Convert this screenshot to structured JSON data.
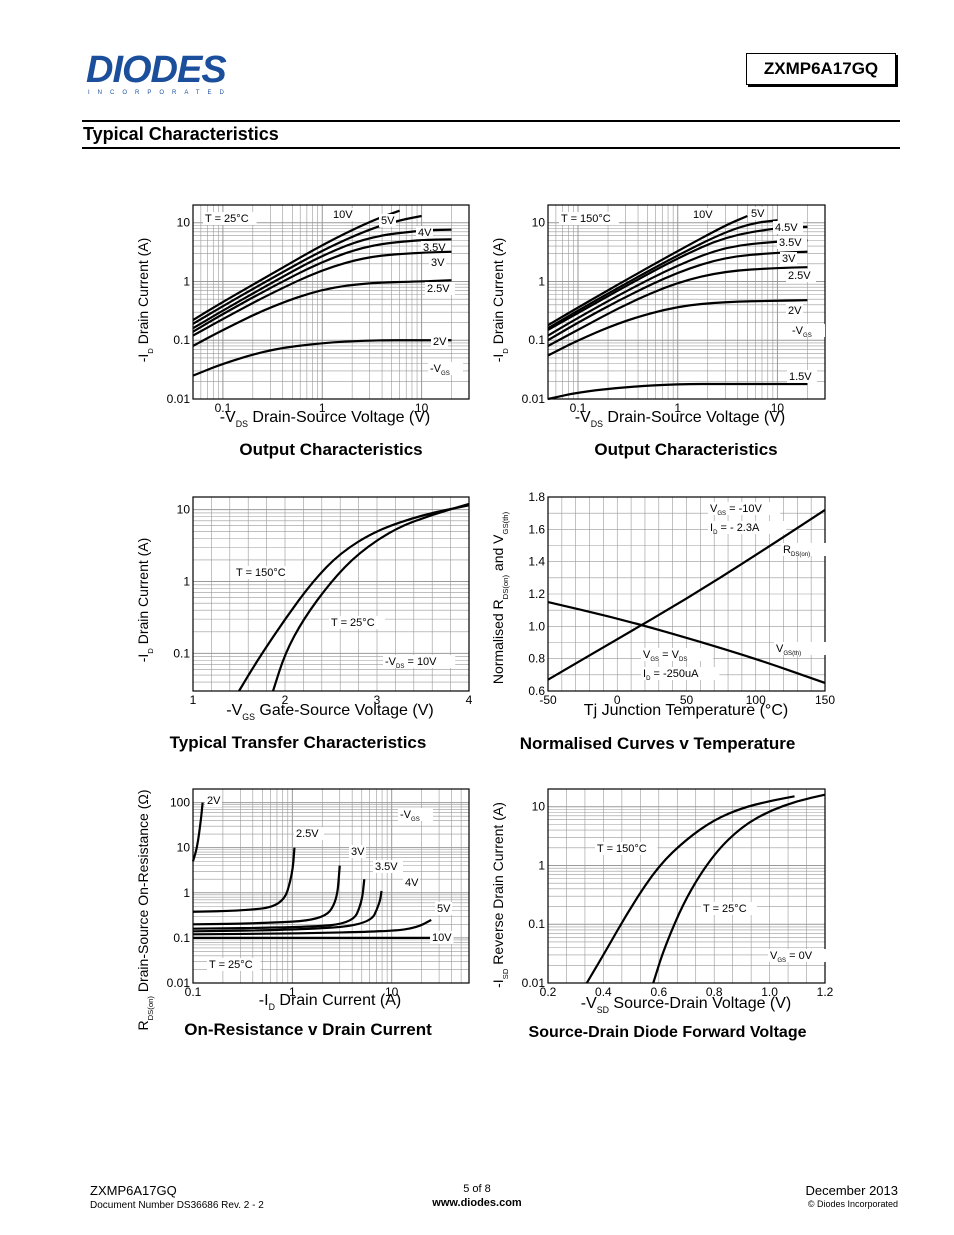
{
  "header": {
    "logo_text": "DIODES",
    "logo_subtext": "INCORPORATED",
    "part_number": "ZXMP6A17GQ",
    "section_title": "Typical Characteristics"
  },
  "footer": {
    "part_number": "ZXMP6A17GQ",
    "document_number": "Document Number DS36686 Rev. 2 - 2",
    "page": "5 of 8",
    "website": "www.diodes.com",
    "date": "December 2013",
    "copyright": "© Diodes Incorporated"
  },
  "chart_data": [
    {
      "type": "line",
      "caption": "Output Characteristics",
      "xlabel": "-V_DS Drain-Source Voltage (V)",
      "ylabel": "-I_D Drain Current (A)",
      "xscale": "log",
      "yscale": "log",
      "xlim": [
        0.05,
        30
      ],
      "ylim": [
        0.01,
        20
      ],
      "xticks": [
        0.1,
        1,
        10
      ],
      "yticks": [
        0.01,
        0.1,
        1,
        10
      ],
      "xtick_labels": [
        "0.1",
        "1",
        "10"
      ],
      "ytick_labels": [
        "0.01",
        "0.1",
        "1",
        "10"
      ],
      "annotations": [
        "T = 25°C",
        "-V_GS"
      ],
      "series": [
        {
          "name": "10V",
          "x": [
            0.05,
            0.1,
            0.3,
            1,
            3,
            6
          ],
          "y": [
            0.22,
            0.45,
            1.3,
            4.2,
            10.5,
            16
          ]
        },
        {
          "name": "5V",
          "x": [
            0.05,
            0.1,
            0.3,
            1,
            3,
            6,
            10
          ],
          "y": [
            0.19,
            0.38,
            1.1,
            3.4,
            7.8,
            11,
            13
          ]
        },
        {
          "name": "4V",
          "x": [
            0.05,
            0.1,
            0.3,
            1,
            3,
            10,
            20
          ],
          "y": [
            0.16,
            0.32,
            0.92,
            2.8,
            5.8,
            7.4,
            7.6
          ]
        },
        {
          "name": "3.5V",
          "x": [
            0.05,
            0.1,
            0.3,
            1,
            3,
            10,
            20
          ],
          "y": [
            0.14,
            0.28,
            0.78,
            2.2,
            4.2,
            5.1,
            5.2
          ]
        },
        {
          "name": "3V",
          "x": [
            0.05,
            0.1,
            0.3,
            1,
            3,
            10,
            20
          ],
          "y": [
            0.12,
            0.23,
            0.62,
            1.6,
            2.7,
            3.1,
            3.2
          ]
        },
        {
          "name": "2.5V",
          "x": [
            0.05,
            0.1,
            0.3,
            1,
            3,
            10,
            20
          ],
          "y": [
            0.08,
            0.15,
            0.37,
            0.75,
            0.95,
            1.0,
            1.05
          ]
        },
        {
          "name": "2V",
          "x": [
            0.05,
            0.1,
            0.3,
            1,
            3,
            10,
            20
          ],
          "y": [
            0.025,
            0.04,
            0.07,
            0.09,
            0.1,
            0.1,
            0.1
          ]
        }
      ]
    },
    {
      "type": "line",
      "caption": "Output Characteristics",
      "xlabel": "-V_DS Drain-Source Voltage (V)",
      "ylabel": "-I_D Drain Current (A)",
      "xscale": "log",
      "yscale": "log",
      "xlim": [
        0.05,
        30
      ],
      "ylim": [
        0.01,
        20
      ],
      "xticks": [
        0.1,
        1,
        10
      ],
      "yticks": [
        0.01,
        0.1,
        1,
        10
      ],
      "xtick_labels": [
        "0.1",
        "1",
        "10"
      ],
      "ytick_labels": [
        "0.01",
        "0.1",
        "1",
        "10"
      ],
      "annotations": [
        "T = 150°C",
        "-V_GS"
      ],
      "series": [
        {
          "name": "10V",
          "x": [
            0.05,
            0.1,
            0.3,
            1,
            3,
            5
          ],
          "y": [
            0.18,
            0.36,
            1.05,
            3.3,
            9,
            13
          ]
        },
        {
          "name": "5V",
          "x": [
            0.05,
            0.1,
            0.3,
            1,
            3,
            6,
            10
          ],
          "y": [
            0.16,
            0.32,
            0.92,
            2.8,
            7,
            10,
            11
          ]
        },
        {
          "name": "4.5V",
          "x": [
            0.05,
            0.1,
            0.3,
            1,
            3,
            10,
            20
          ],
          "y": [
            0.15,
            0.29,
            0.83,
            2.5,
            5.8,
            8.2,
            8.5
          ]
        },
        {
          "name": "3.5V",
          "x": [
            0.05,
            0.1,
            0.3,
            1,
            3,
            10,
            20
          ],
          "y": [
            0.12,
            0.24,
            0.68,
            1.9,
            3.9,
            4.8,
            5.0
          ]
        },
        {
          "name": "3V",
          "x": [
            0.05,
            0.1,
            0.3,
            1,
            3,
            10,
            20
          ],
          "y": [
            0.1,
            0.2,
            0.55,
            1.45,
            2.6,
            3.1,
            3.2
          ]
        },
        {
          "name": "2.5V",
          "x": [
            0.05,
            0.1,
            0.3,
            1,
            3,
            10,
            20
          ],
          "y": [
            0.08,
            0.15,
            0.41,
            0.98,
            1.5,
            1.7,
            1.75
          ]
        },
        {
          "name": "2V",
          "x": [
            0.05,
            0.1,
            0.3,
            1,
            3,
            10,
            20
          ],
          "y": [
            0.055,
            0.1,
            0.22,
            0.38,
            0.45,
            0.47,
            0.48
          ]
        },
        {
          "name": "1.5V",
          "x": [
            0.05,
            0.1,
            0.3,
            1,
            3,
            10,
            20
          ],
          "y": [
            0.01,
            0.013,
            0.016,
            0.018,
            0.018,
            0.018,
            0.018
          ]
        }
      ]
    },
    {
      "type": "line",
      "caption": "Typical Transfer Characteristics",
      "xlabel": "-V_GS Gate-Source Voltage (V)",
      "ylabel": "-I_D Drain Current (A)",
      "xscale": "linear",
      "yscale": "log",
      "xlim": [
        1,
        4
      ],
      "ylim": [
        0.03,
        15
      ],
      "xticks": [
        1,
        2,
        3,
        4
      ],
      "yticks": [
        0.1,
        1,
        10
      ],
      "xtick_labels": [
        "1",
        "2",
        "3",
        "4"
      ],
      "ytick_labels": [
        "0.1",
        "1",
        "10"
      ],
      "annotations": [
        "-V_DS = 10V"
      ],
      "series": [
        {
          "name": "T = 150°C",
          "x": [
            1.5,
            1.7,
            2.0,
            2.3,
            2.6,
            3.0,
            3.5,
            4.0
          ],
          "y": [
            0.03,
            0.08,
            0.3,
            1.0,
            2.5,
            5.2,
            8.5,
            11.5
          ]
        },
        {
          "name": "T = 25°C",
          "x": [
            1.87,
            2.0,
            2.2,
            2.5,
            2.8,
            3.2,
            3.6,
            4.0
          ],
          "y": [
            0.03,
            0.1,
            0.3,
            1.0,
            2.5,
            5.5,
            8.5,
            12
          ]
        }
      ]
    },
    {
      "type": "line",
      "caption": "Normalised Curves v Temperature",
      "xlabel": "Tj Junction Temperature (°C)",
      "ylabel": "Normalised R_DS(on) and V_GS(th)",
      "xscale": "linear",
      "yscale": "linear",
      "xlim": [
        -50,
        150
      ],
      "ylim": [
        0.6,
        1.8
      ],
      "xticks": [
        -50,
        0,
        50,
        100,
        150
      ],
      "yticks": [
        0.6,
        0.8,
        1.0,
        1.2,
        1.4,
        1.6,
        1.8
      ],
      "xtick_labels": [
        "-50",
        "0",
        "50",
        "100",
        "150"
      ],
      "ytick_labels": [
        "0.6",
        "0.8",
        "1.0",
        "1.2",
        "1.4",
        "1.6",
        "1.8"
      ],
      "annotations": [
        "V_GS = -10V",
        "I_D = - 2.3A",
        "V_GS = V_DS",
        "I_D = -250uA"
      ],
      "series": [
        {
          "name": "R_DS(on)",
          "x": [
            -50,
            0,
            50,
            100,
            150
          ],
          "y": [
            0.67,
            0.92,
            1.17,
            1.44,
            1.72
          ]
        },
        {
          "name": "V_GS(th)",
          "x": [
            -50,
            0,
            50,
            100,
            150
          ],
          "y": [
            1.15,
            1.05,
            0.93,
            0.8,
            0.65
          ]
        }
      ]
    },
    {
      "type": "line",
      "caption": "On-Resistance v Drain Current",
      "xlabel": "-I_D Drain Current (A)",
      "ylabel": "R_DS(on) Drain-Source On-Resistance (Ω)",
      "xscale": "log",
      "yscale": "log",
      "xlim": [
        0.1,
        60
      ],
      "ylim": [
        0.01,
        200
      ],
      "xticks": [
        0.1,
        1,
        10
      ],
      "yticks": [
        0.01,
        0.1,
        1,
        10,
        100
      ],
      "xtick_labels": [
        "0.1",
        "1",
        "10"
      ],
      "ytick_labels": [
        "0.01",
        "0.1",
        "1",
        "10",
        "100"
      ],
      "annotations": [
        "T = 25°C",
        "-V_GS"
      ],
      "series": [
        {
          "name": "2V",
          "x": [
            0.1,
            0.11,
            0.12,
            0.125
          ],
          "y": [
            5,
            10,
            40,
            100
          ]
        },
        {
          "name": "2.5V",
          "x": [
            0.1,
            0.3,
            0.8,
            1.0,
            1.05
          ],
          "y": [
            0.38,
            0.4,
            0.5,
            2.5,
            10
          ]
        },
        {
          "name": "3V",
          "x": [
            0.1,
            0.5,
            2,
            2.8,
            3.0
          ],
          "y": [
            0.2,
            0.21,
            0.25,
            0.6,
            4
          ]
        },
        {
          "name": "3.5V",
          "x": [
            0.1,
            1,
            4,
            5.0,
            5.3
          ],
          "y": [
            0.16,
            0.17,
            0.2,
            0.6,
            2
          ]
        },
        {
          "name": "4V",
          "x": [
            0.1,
            1,
            6,
            7.6,
            7.9
          ],
          "y": [
            0.14,
            0.15,
            0.19,
            0.6,
            1.1
          ]
        },
        {
          "name": "5V",
          "x": [
            0.1,
            1,
            10,
            18,
            25
          ],
          "y": [
            0.12,
            0.125,
            0.14,
            0.17,
            0.25
          ]
        },
        {
          "name": "10V",
          "x": [
            0.1,
            1,
            10,
            25
          ],
          "y": [
            0.1,
            0.1,
            0.1,
            0.1
          ]
        }
      ]
    },
    {
      "type": "line",
      "caption": "Source-Drain Diode Forward Voltage",
      "xlabel": "-V_SD Source-Drain Voltage (V)",
      "ylabel": "-I_SD Reverse Drain Current (A)",
      "xscale": "linear",
      "yscale": "log",
      "xlim": [
        0.2,
        1.2
      ],
      "ylim": [
        0.01,
        20
      ],
      "xticks": [
        0.2,
        0.4,
        0.6,
        0.8,
        1.0,
        1.2
      ],
      "yticks": [
        0.01,
        0.1,
        1,
        10
      ],
      "xtick_labels": [
        "0.2",
        "0.4",
        "0.6",
        "0.8",
        "1.0",
        "1.2"
      ],
      "ytick_labels": [
        "0.01",
        "0.1",
        "1",
        "10"
      ],
      "annotations": [
        "V_GS = 0V"
      ],
      "series": [
        {
          "name": "T = 150°C",
          "x": [
            0.34,
            0.4,
            0.5,
            0.6,
            0.7,
            0.8,
            0.9,
            1.0,
            1.09
          ],
          "y": [
            0.01,
            0.03,
            0.2,
            1.0,
            2.8,
            6.0,
            9.5,
            12.5,
            15
          ]
        },
        {
          "name": "T = 25°C",
          "x": [
            0.58,
            0.62,
            0.7,
            0.8,
            0.9,
            1.0,
            1.1,
            1.2
          ],
          "y": [
            0.01,
            0.04,
            0.3,
            1.6,
            4.6,
            8.5,
            12.5,
            16
          ]
        }
      ]
    }
  ]
}
